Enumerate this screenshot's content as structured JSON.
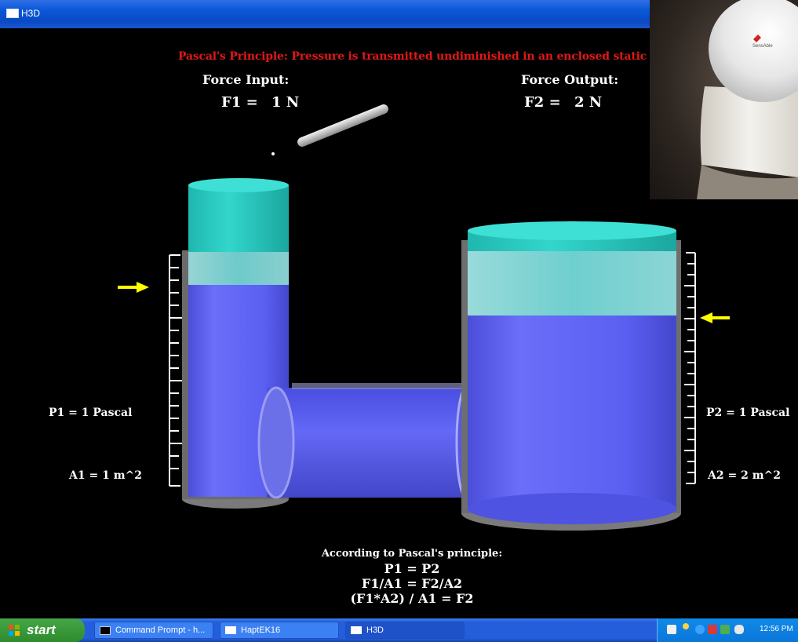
{
  "window": {
    "title": "H3D"
  },
  "scene": {
    "principle": "Pascal's Principle: Pressure is transmitted undiminished in an enclosed static fluid.",
    "force_input": {
      "heading": "Force Input:",
      "label": "F1 =",
      "value": "1 N"
    },
    "force_output": {
      "heading": "Force Output:",
      "label": "F2 =",
      "value": "2 N"
    },
    "left_cylinder": {
      "pressure": "P1 =  1 Pascal",
      "area": "A1 = 1 m^2"
    },
    "right_cylinder": {
      "pressure": "P2 =  1 Pascal",
      "area": "A2 = 2 m^2"
    },
    "explanation": {
      "intro": "According to Pascal's principle:",
      "line1": "P1 = P2",
      "line2": "F1/A1 = F2/A2",
      "line3": "(F1*A2) / A1 = F2"
    },
    "colors": {
      "fluid": "#5a5ef0",
      "piston": "#2fcfc6",
      "pressure_text": "#e01818",
      "arrow": "#ffff00"
    }
  },
  "inset": {
    "brand": "SensAble"
  },
  "taskbar": {
    "start": "start",
    "tasks": [
      {
        "label": "Command Prompt - h...",
        "icon": "cmd-icon"
      },
      {
        "label": "HaptEK16",
        "icon": "window-icon"
      },
      {
        "label": "H3D",
        "icon": "window-icon"
      }
    ],
    "clock": "12:56 PM"
  }
}
